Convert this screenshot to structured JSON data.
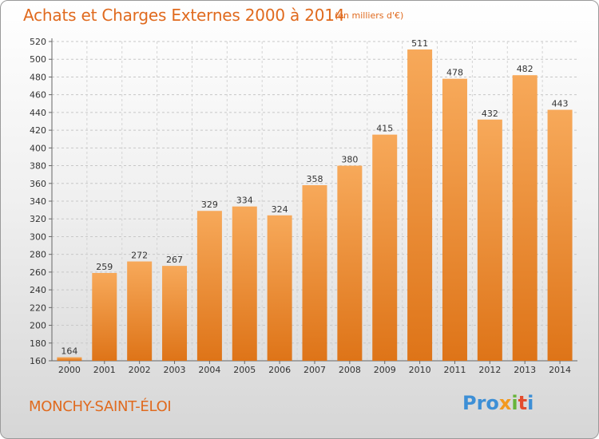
{
  "header": {
    "title": "Achats et Charges Externes 2000 à 2014",
    "units": "(en milliers d'€)"
  },
  "footer": {
    "town": "MONCHY-SAINT-ÉLOI",
    "logo": {
      "parts": [
        "Pro",
        "x",
        "i",
        "t",
        "i"
      ],
      "colors": [
        "#3d8fd6",
        "#f39a1f",
        "#67b43a",
        "#e44d2e",
        "#3d8fd6"
      ]
    }
  },
  "colors": {
    "bar_light": "#f7a95a",
    "bar_dark": "#de7418",
    "accent": "#e06a1e"
  },
  "chart_data": {
    "type": "bar",
    "title": "Achats et Charges Externes 2000 à 2014",
    "subtitle": "(en milliers d'€)",
    "categories": [
      "2000",
      "2001",
      "2002",
      "2003",
      "2004",
      "2005",
      "2006",
      "2007",
      "2008",
      "2009",
      "2010",
      "2011",
      "2012",
      "2013",
      "2014"
    ],
    "values": [
      164,
      259,
      272,
      267,
      329,
      334,
      324,
      358,
      380,
      415,
      511,
      478,
      432,
      482,
      443
    ],
    "ylim": [
      160,
      520
    ],
    "yticks": [
      160,
      180,
      200,
      220,
      240,
      260,
      280,
      300,
      320,
      340,
      360,
      380,
      400,
      420,
      440,
      460,
      480,
      500,
      520
    ],
    "grid": true,
    "legend": "none"
  }
}
